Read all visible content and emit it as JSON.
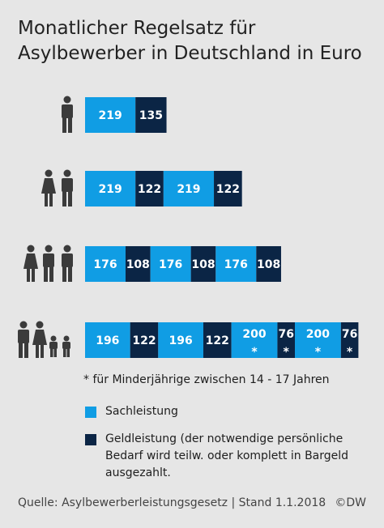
{
  "chart_data": {
    "type": "stacked-bar",
    "title": [
      "Monatlicher Regelsatz für",
      "Asylbewerber in Deutschland in Euro"
    ],
    "series": [
      {
        "name": "Sachleistung",
        "color": "#109de4"
      },
      {
        "name": "Geldleistung (der notwendige persönliche Bedarf wird teilw. oder komplett in Bargeld ausgezahlt.",
        "color": "#0b2545"
      }
    ],
    "rows": [
      {
        "segments": [
          {
            "series": 0,
            "value": 219
          },
          {
            "series": 1,
            "value": 135
          }
        ]
      },
      {
        "segments": [
          {
            "series": 0,
            "value": 219
          },
          {
            "series": 1,
            "value": 122
          },
          {
            "series": 0,
            "value": 219
          },
          {
            "series": 1,
            "value": 122
          }
        ]
      },
      {
        "segments": [
          {
            "series": 0,
            "value": 176
          },
          {
            "series": 1,
            "value": 108
          },
          {
            "series": 0,
            "value": 176
          },
          {
            "series": 1,
            "value": 108
          },
          {
            "series": 0,
            "value": 176
          },
          {
            "series": 1,
            "value": 108
          }
        ]
      },
      {
        "segments": [
          {
            "series": 0,
            "value": 196
          },
          {
            "series": 1,
            "value": 122
          },
          {
            "series": 0,
            "value": 196
          },
          {
            "series": 1,
            "value": 122
          },
          {
            "series": 0,
            "value": 200,
            "mark": "*"
          },
          {
            "series": 1,
            "value": 76,
            "mark": "*"
          },
          {
            "series": 0,
            "value": 200,
            "mark": "*"
          },
          {
            "series": 1,
            "value": 76,
            "mark": "*"
          }
        ]
      }
    ],
    "footnote": "* für Minderjährige zwischen 14 - 17 Jahren",
    "source": "Quelle: Asylbewerberleistungsgesetz | Stand 1.1.2018",
    "credit": "©DW"
  }
}
